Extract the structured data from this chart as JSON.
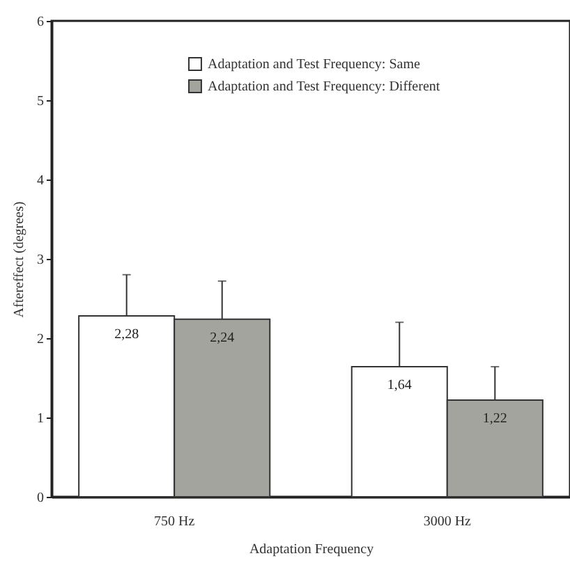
{
  "chart_data": {
    "type": "bar",
    "xlabel": "Adaptation Frequency",
    "ylabel": "Aftereffect (degrees)",
    "categories": [
      "750 Hz",
      "3000 Hz"
    ],
    "series": [
      {
        "name": "Adaptation and Test Frequency: Same",
        "color": "#ffffff",
        "values": [
          2.28,
          1.64
        ],
        "value_labels": [
          "2,28",
          "1,64"
        ],
        "errors": [
          [
            2.28,
            2.8
          ],
          [
            1.64,
            2.2
          ]
        ]
      },
      {
        "name": "Adaptation and Test Frequency: Different",
        "color": "#a4a49f",
        "values": [
          2.24,
          1.22
        ],
        "value_labels": [
          "2,24",
          "1,22"
        ],
        "errors": [
          [
            2.24,
            2.72
          ],
          [
            1.22,
            1.64
          ]
        ]
      }
    ],
    "ylim": [
      0,
      6
    ],
    "yticks": [
      0,
      1,
      2,
      3,
      4,
      5,
      6
    ],
    "grid": false,
    "legend": "top left"
  }
}
